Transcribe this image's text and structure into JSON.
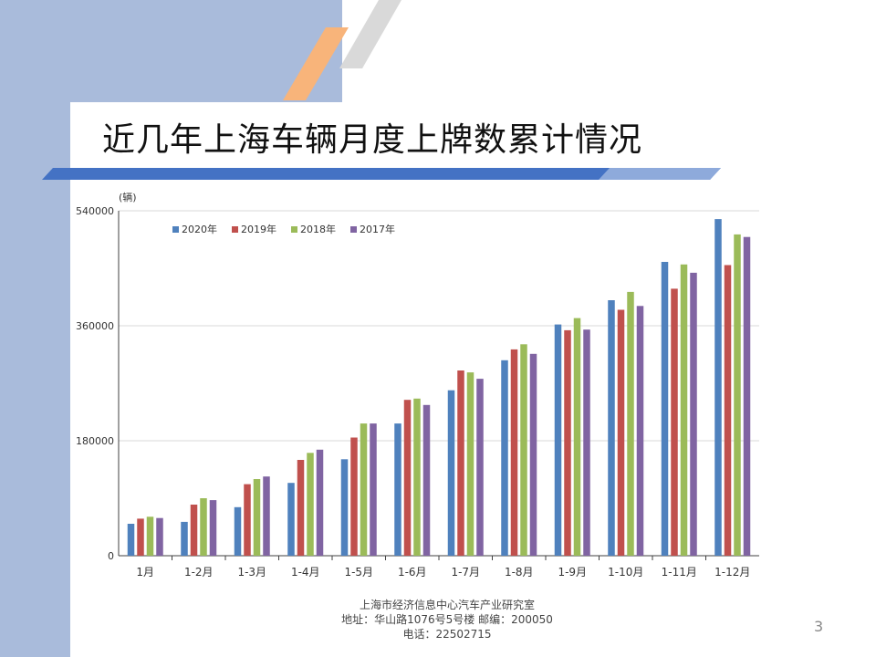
{
  "slide": {
    "title": "近几年上海车辆月度上牌数累计情况",
    "page_number": "3",
    "footer": {
      "line1": "上海市经济信息中心汽车产业研究室",
      "line2": "地址：华山路1076号5号楼    邮编：200050",
      "line3": "电话：22502715"
    }
  },
  "colors": {
    "band": "#a9bbdb",
    "stripe_blue": "#4472c4",
    "stripe_orange": "#f8b47a",
    "stripe_gray": "#d9d9d9",
    "series": [
      "#4f81bd",
      "#c0504d",
      "#9bbb59",
      "#8064a2"
    ]
  },
  "chart_data": {
    "type": "bar",
    "title": "",
    "unit_label": "(辆)",
    "xlabel": "",
    "ylabel": "(辆)",
    "ylim": [
      0,
      540000
    ],
    "yticks": [
      0,
      180000,
      360000,
      540000
    ],
    "ytick_labels": [
      "0",
      "180000",
      "360000",
      "540000"
    ],
    "grid": true,
    "legend_position": "top-left",
    "categories": [
      "1月",
      "1-2月",
      "1-3月",
      "1-4月",
      "1-5月",
      "1-6月",
      "1-7月",
      "1-8月",
      "1-9月",
      "1-10月",
      "1-11月",
      "1-12月"
    ],
    "series": [
      {
        "name": "2020年",
        "values": [
          50000,
          53000,
          76000,
          114000,
          151000,
          207000,
          259000,
          306000,
          362000,
          400000,
          460000,
          527000
        ]
      },
      {
        "name": "2019年",
        "values": [
          58000,
          80000,
          112000,
          150000,
          185000,
          244000,
          290000,
          323000,
          353000,
          385000,
          418000,
          455000
        ]
      },
      {
        "name": "2018年",
        "values": [
          61000,
          90000,
          120000,
          161000,
          207000,
          246000,
          287000,
          331000,
          372000,
          413000,
          456000,
          503000
        ]
      },
      {
        "name": "2017年",
        "values": [
          59000,
          87000,
          124000,
          166000,
          207000,
          236000,
          277000,
          316000,
          354000,
          391000,
          443000,
          499000
        ]
      }
    ]
  }
}
